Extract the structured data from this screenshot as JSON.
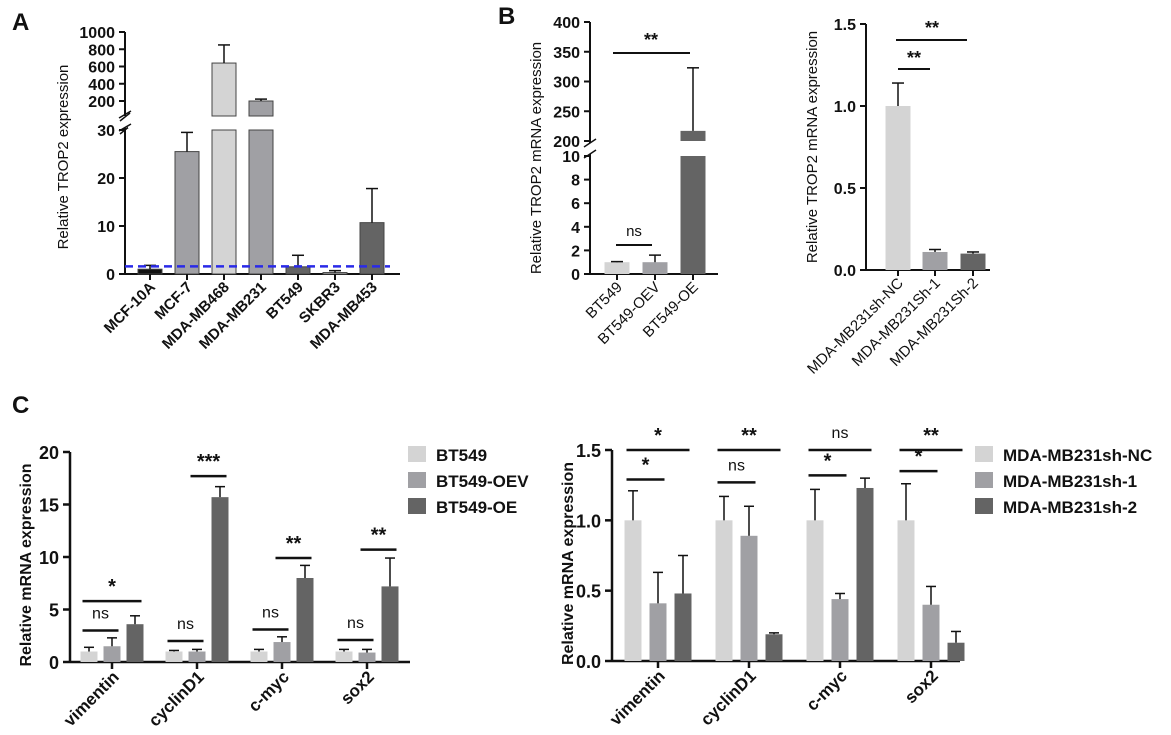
{
  "panel_labels": [
    "A",
    "B",
    "C"
  ],
  "colors": {
    "light": "#d4d4d4",
    "mid": "#a0a0a4",
    "dark": "#646464",
    "black": "#111111",
    "reference_line": "#2a2ae8"
  },
  "chart_data": [
    {
      "id": "A",
      "type": "bar",
      "title": "",
      "ylabel": "Relative TROP2 expression",
      "xlabel": "",
      "broken_axis": true,
      "lower_range": [
        0,
        30
      ],
      "lower_ticks": [
        "0",
        "10",
        "20",
        "30"
      ],
      "upper_range": [
        200,
        1000
      ],
      "upper_ticks": [
        "200",
        "400",
        "600",
        "800",
        "1000"
      ],
      "categories": [
        "MCF-10A",
        "MCF-7",
        "MDA-MB468",
        "MDA-MB231",
        "BT549",
        "SKBR3",
        "MDA-MB453"
      ],
      "values": [
        1.0,
        25.5,
        640,
        200,
        1.5,
        0.3,
        10.7
      ],
      "error_upper": [
        1.8,
        29.5,
        850,
        222,
        3.9,
        0.7,
        17.8
      ],
      "bar_colors": [
        "black",
        "mid",
        "light",
        "mid",
        "dark",
        "light",
        "dark"
      ],
      "reference_line": {
        "y": 1.6,
        "style": "dashed",
        "color": "blue"
      }
    },
    {
      "id": "B-left",
      "type": "bar",
      "ylabel": "Relative TROP2 mRNA expression",
      "broken_axis": true,
      "lower_range": [
        0,
        10
      ],
      "lower_ticks": [
        "0",
        "2",
        "4",
        "6",
        "8",
        "10"
      ],
      "upper_range": [
        200,
        400
      ],
      "upper_ticks": [
        "200",
        "250",
        "300",
        "350",
        "400"
      ],
      "categories": [
        "BT549",
        "BT549-OEV",
        "BT549-OE"
      ],
      "values": [
        1.0,
        1.0,
        217
      ],
      "error_upper": [
        1.05,
        1.6,
        323
      ],
      "bar_colors": [
        "light",
        "mid",
        "dark"
      ],
      "significance": [
        {
          "from": 0,
          "to": 1,
          "label": "ns"
        },
        {
          "from": 0,
          "to": 2,
          "label": "**"
        }
      ]
    },
    {
      "id": "B-right",
      "type": "bar",
      "ylabel": "Relative TROP2 mRNA expression",
      "ylim": [
        0,
        1.5
      ],
      "yticks": [
        "0.0",
        "0.5",
        "1.0",
        "1.5"
      ],
      "categories": [
        "MDA-MB231sh-NC",
        "MDA-MB231Sh-1",
        "MDA-MB231Sh-2"
      ],
      "values": [
        1.0,
        0.11,
        0.1
      ],
      "error_upper": [
        1.14,
        0.125,
        0.11
      ],
      "bar_colors": [
        "light",
        "mid",
        "dark"
      ],
      "significance": [
        {
          "from": 0,
          "to": 1,
          "label": "**"
        },
        {
          "from": 0,
          "to": 2,
          "label": "**"
        }
      ]
    },
    {
      "id": "C-left",
      "type": "bar",
      "grouped": true,
      "ylabel": "Relative mRNA expression",
      "ylim": [
        0,
        20
      ],
      "yticks": [
        "0",
        "5",
        "10",
        "15",
        "20"
      ],
      "categories": [
        "vimentin",
        "cyclinD1",
        "c-myc",
        "sox2"
      ],
      "legend_position": "right",
      "series": [
        {
          "name": "BT549",
          "color": "light",
          "values": [
            1.0,
            1.0,
            1.0,
            1.0
          ],
          "error_upper": [
            1.4,
            1.1,
            1.2,
            1.2
          ]
        },
        {
          "name": "BT549-OEV",
          "color": "mid",
          "values": [
            1.5,
            1.0,
            1.9,
            0.9
          ],
          "error_upper": [
            2.3,
            1.2,
            2.4,
            1.2
          ]
        },
        {
          "name": "BT549-OE",
          "color": "dark",
          "values": [
            3.6,
            15.7,
            8.0,
            7.2
          ],
          "error_upper": [
            4.4,
            16.7,
            9.2,
            9.9
          ]
        }
      ],
      "significance": [
        {
          "group": 0,
          "from": 0,
          "to": 1,
          "label": "ns",
          "y": 3.0
        },
        {
          "group": 0,
          "from": 0,
          "to": 2,
          "label": "*",
          "y": 5.8
        },
        {
          "group": 1,
          "from": 0,
          "to": 1,
          "label": "ns",
          "y": 2.0
        },
        {
          "group": 1,
          "from": 1,
          "to": 2,
          "label": "***",
          "y": 17.7
        },
        {
          "group": 2,
          "from": 0,
          "to": 1,
          "label": "ns",
          "y": 3.1
        },
        {
          "group": 2,
          "from": 1,
          "to": 2,
          "label": "**",
          "y": 9.9
        },
        {
          "group": 3,
          "from": 0,
          "to": 1,
          "label": "ns",
          "y": 2.1
        },
        {
          "group": 3,
          "from": 1,
          "to": 2,
          "label": "**",
          "y": 10.7
        }
      ]
    },
    {
      "id": "C-right",
      "type": "bar",
      "grouped": true,
      "ylabel": "Relative mRNA expression",
      "ylim": [
        0,
        1.5
      ],
      "yticks": [
        "0.0",
        "0.5",
        "1.0",
        "1.5"
      ],
      "categories": [
        "vimentin",
        "cyclinD1",
        "c-myc",
        "sox2"
      ],
      "legend_position": "right",
      "series": [
        {
          "name": "MDA-MB231sh-NC",
          "color": "light",
          "values": [
            1.0,
            1.0,
            1.0,
            1.0
          ],
          "error_upper": [
            1.21,
            1.17,
            1.22,
            1.26
          ]
        },
        {
          "name": "MDA-MB231sh-1",
          "color": "mid",
          "values": [
            0.41,
            0.89,
            0.44,
            0.4
          ],
          "error_upper": [
            0.63,
            1.1,
            0.48,
            0.53
          ]
        },
        {
          "name": "MDA-MB231sh-2",
          "color": "dark",
          "values": [
            0.48,
            0.19,
            1.23,
            0.13
          ],
          "error_upper": [
            0.75,
            0.2,
            1.3,
            0.21
          ]
        }
      ],
      "significance": [
        {
          "group": 0,
          "from": 0,
          "to": 1,
          "label": "*",
          "y": 1.29
        },
        {
          "group": 0,
          "from": 0,
          "to": 2,
          "label": "*",
          "y": 1.5
        },
        {
          "group": 1,
          "from": 0,
          "to": 1,
          "label": "ns",
          "y": 1.27
        },
        {
          "group": 1,
          "from": 0,
          "to": 2,
          "label": "**",
          "y": 1.5
        },
        {
          "group": 2,
          "from": 0,
          "to": 1,
          "label": "*",
          "y": 1.32
        },
        {
          "group": 2,
          "from": 0,
          "to": 2,
          "label": "ns",
          "y": 1.5
        },
        {
          "group": 3,
          "from": 0,
          "to": 1,
          "label": "*",
          "y": 1.35
        },
        {
          "group": 3,
          "from": 0,
          "to": 2,
          "label": "**",
          "y": 1.5
        }
      ]
    }
  ]
}
